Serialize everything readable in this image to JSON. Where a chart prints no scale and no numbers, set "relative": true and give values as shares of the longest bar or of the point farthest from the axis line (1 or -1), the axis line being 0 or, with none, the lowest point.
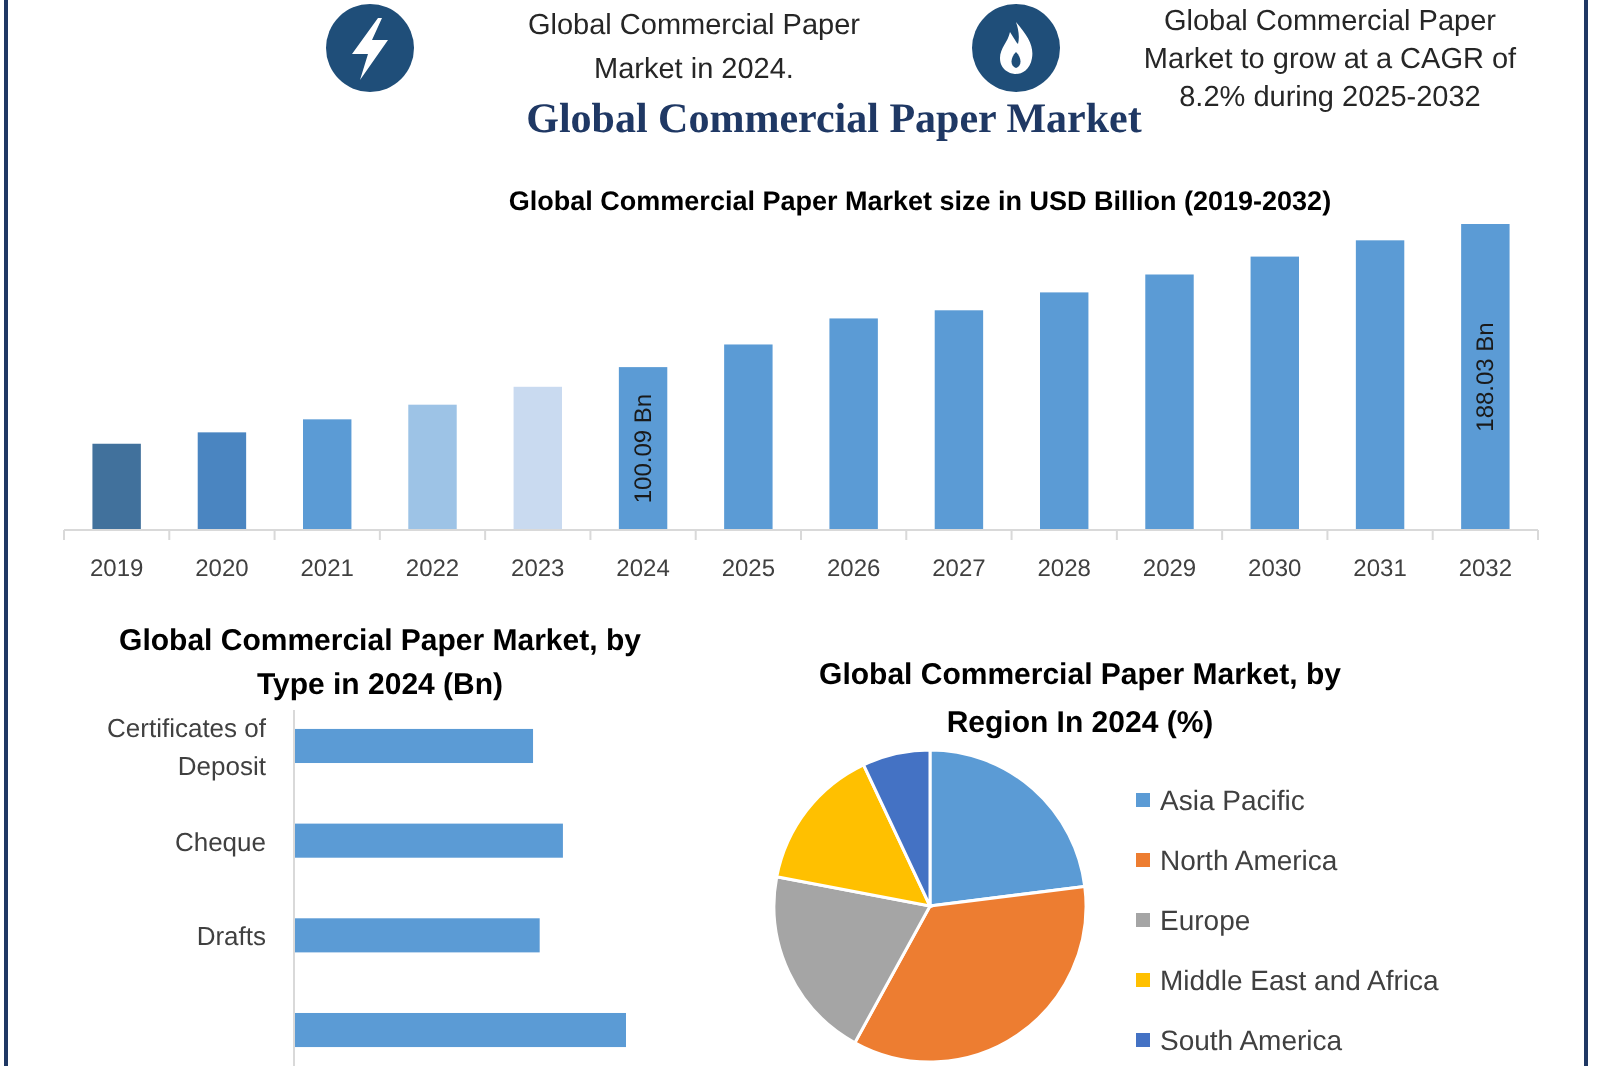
{
  "chart_data": [
    {
      "type": "other",
      "title": "Global Commercial Paper Market",
      "annotations": [
        "Global Commercial Paper Market in 2024.",
        "Global Commercial Paper Market to grow at a CAGR of 8.2% during 2025-2032"
      ]
    },
    {
      "type": "bar",
      "title": "Global Commercial Paper Market size in USD Billion (2019-2032)",
      "categories": [
        "2019",
        "2020",
        "2021",
        "2022",
        "2023",
        "2024",
        "2025",
        "2026",
        "2027",
        "2028",
        "2029",
        "2030",
        "2031",
        "2032"
      ],
      "values": [
        53,
        60,
        68,
        77,
        88,
        100.09,
        114,
        130,
        135,
        146,
        157,
        168,
        178,
        188.03
      ],
      "colors": [
        "#41719c",
        "#4a85c1",
        "#5b9bd5",
        "#9dc3e6",
        "#c9daf0",
        "#5b9bd5",
        "#5b9bd5",
        "#5b9bd5",
        "#5b9bd5",
        "#5b9bd5",
        "#5b9bd5",
        "#5b9bd5",
        "#5b9bd5",
        "#5b9bd5"
      ],
      "value_labels": [
        null,
        null,
        null,
        null,
        null,
        "100.09 Bn",
        null,
        null,
        null,
        null,
        null,
        null,
        null,
        "188.03 Bn"
      ]
    },
    {
      "type": "bar",
      "orientation": "horizontal",
      "relative": true,
      "title": "Global Commercial Paper Market, by Type in 2024 (Bn)",
      "categories": [
        "Certificates of Deposit",
        "Cheque",
        "Drafts",
        null
      ],
      "values": [
        0.72,
        0.81,
        0.74,
        1
      ],
      "color": "#5b9bd5"
    },
    {
      "type": "pie",
      "title": "Global Commercial Paper Market, by Region In 2024 (%)",
      "categories": [
        "Asia Pacific",
        "North America",
        "Europe",
        "Middle East and Africa",
        "South America"
      ],
      "values": [
        23,
        35,
        20,
        15,
        7
      ],
      "colors": [
        "#5b9bd5",
        "#ed7d31",
        "#a5a5a5",
        "#ffc000",
        "#4472c4"
      ],
      "legend": "right"
    }
  ]
}
